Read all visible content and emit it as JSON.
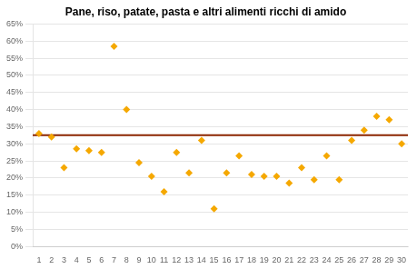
{
  "chart_data": {
    "type": "scatter",
    "title": "Pane, riso, patate, pasta e altri alimenti ricchi di amido",
    "x": [
      1,
      2,
      3,
      4,
      5,
      6,
      7,
      8,
      9,
      10,
      11,
      12,
      13,
      14,
      15,
      16,
      17,
      18,
      19,
      20,
      21,
      22,
      23,
      24,
      25,
      26,
      27,
      28,
      29,
      30
    ],
    "values": [
      0.33,
      0.32,
      0.23,
      0.285,
      0.28,
      0.275,
      0.585,
      0.4,
      0.245,
      0.205,
      0.16,
      0.275,
      0.215,
      0.31,
      0.11,
      0.215,
      0.265,
      0.21,
      0.205,
      0.205,
      0.185,
      0.23,
      0.195,
      0.265,
      0.195,
      0.31,
      0.34,
      0.38,
      0.37,
      0.3
    ],
    "color": "#F5A800",
    "marker": "diamond",
    "reference_line": {
      "y": 0.325,
      "color": "#8B2500"
    },
    "xlim": [
      0.5,
      30.5
    ],
    "xticks": [
      1,
      2,
      3,
      4,
      5,
      6,
      7,
      8,
      9,
      10,
      11,
      12,
      13,
      14,
      15,
      16,
      17,
      18,
      19,
      20,
      21,
      22,
      23,
      24,
      25,
      26,
      27,
      28,
      29,
      30
    ],
    "ylim": [
      0,
      0.65
    ],
    "yticks": [
      {
        "value": 0,
        "label": "0%"
      },
      {
        "value": 0.05,
        "label": "5%"
      },
      {
        "value": 0.1,
        "label": "10%"
      },
      {
        "value": 0.15,
        "label": "15%"
      },
      {
        "value": 0.2,
        "label": "20%"
      },
      {
        "value": 0.25,
        "label": "25%"
      },
      {
        "value": 0.3,
        "label": "30%"
      },
      {
        "value": 0.35,
        "label": "35%"
      },
      {
        "value": 0.4,
        "label": "40%"
      },
      {
        "value": 0.45,
        "label": "45%"
      },
      {
        "value": 0.5,
        "label": "50%"
      },
      {
        "value": 0.55,
        "label": "55%"
      },
      {
        "value": 0.6,
        "label": "60%"
      },
      {
        "value": 0.65,
        "label": "65%"
      }
    ],
    "grid": "y"
  }
}
